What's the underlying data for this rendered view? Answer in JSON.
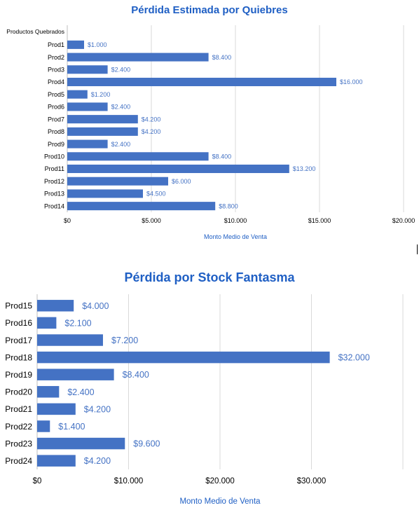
{
  "colors": {
    "bar": "#4472c4",
    "title": "#1f5fc4",
    "label": "#4472c4",
    "grid": "#d9d9d9"
  },
  "chart_data": [
    {
      "type": "bar",
      "orientation": "horizontal",
      "title": "Pérdida Estimada por Quiebres",
      "category_header": "Productos Quebrados",
      "xlabel": "Monto Medio de Venta",
      "categories": [
        "Prod1",
        "Prod2",
        "Prod3",
        "Prod4",
        "Prod5",
        "Prod6",
        "Prod7",
        "Prod8",
        "Prod9",
        "Prod10",
        "Prod11",
        "Prod12",
        "Prod13",
        "Prod14"
      ],
      "values": [
        1000,
        8400,
        2400,
        16000,
        1200,
        2400,
        4200,
        4200,
        2400,
        8400,
        13200,
        6000,
        4500,
        8800
      ],
      "value_labels": [
        "$1.000",
        "$8.400",
        "$2.400",
        "$16.000",
        "$1.200",
        "$2.400",
        "$4.200",
        "$4.200",
        "$2.400",
        "$8.400",
        "$13.200",
        "$6.000",
        "$4.500",
        "$8.800"
      ],
      "xlim": [
        0,
        20000
      ],
      "ticks": [
        0,
        5000,
        10000,
        15000,
        20000
      ],
      "tick_labels": [
        "$0",
        "$5.000",
        "$10.000",
        "$15.000",
        "$20.000"
      ],
      "grid": true
    },
    {
      "type": "bar",
      "orientation": "horizontal",
      "title": "Pérdida por Stock Fantasma",
      "xlabel": "Monto Medio de Venta",
      "categories": [
        "Prod15",
        "Prod16",
        "Prod17",
        "Prod18",
        "Prod19",
        "Prod20",
        "Prod21",
        "Prod22",
        "Prod23",
        "Prod24"
      ],
      "values": [
        4000,
        2100,
        7200,
        32000,
        8400,
        2400,
        4200,
        1400,
        9600,
        4200
      ],
      "value_labels": [
        "$4.000",
        "$2.100",
        "$7.200",
        "$32.000",
        "$8.400",
        "$2.400",
        "$4.200",
        "$1.400",
        "$9.600",
        "$4.200"
      ],
      "xlim": [
        0,
        40000
      ],
      "ticks": [
        0,
        10000,
        20000,
        30000,
        40000
      ],
      "tick_labels": [
        "$0",
        "$10.000",
        "$20.000",
        "$30.000",
        ""
      ],
      "grid": true
    }
  ]
}
